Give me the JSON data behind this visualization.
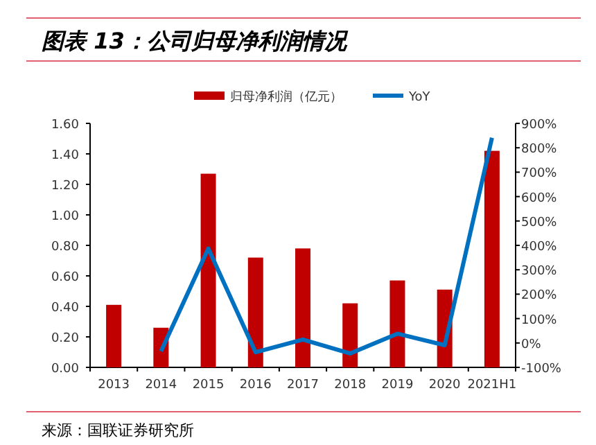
{
  "chart_data": {
    "type": "bar",
    "title": "图表 13：公司归母净利润情况",
    "categories": [
      "2013",
      "2014",
      "2015",
      "2016",
      "2017",
      "2018",
      "2019",
      "2020",
      "2021H1"
    ],
    "series": [
      {
        "name": "归母净利润（亿元）",
        "color": "#c00000",
        "values": [
          0.41,
          0.26,
          1.27,
          0.72,
          0.78,
          0.42,
          0.57,
          0.51,
          1.42
        ]
      },
      {
        "name": "YoY",
        "type": "line",
        "axis": "y2",
        "color": "#0070c0",
        "values": [
          null,
          -34,
          387,
          -38,
          14,
          -43,
          38,
          -9,
          841
        ]
      }
    ],
    "ylim": [
      0,
      1.6
    ],
    "yticks": [
      {
        "value": 0,
        "label": "0.00"
      },
      {
        "value": 0.2,
        "label": "0.20"
      },
      {
        "value": 0.4,
        "label": "0.40"
      },
      {
        "value": 0.6,
        "label": "0.60"
      },
      {
        "value": 0.8,
        "label": "0.80"
      },
      {
        "value": 1,
        "label": "1.00"
      },
      {
        "value": 1.2,
        "label": "1.20"
      },
      {
        "value": 1.4,
        "label": "1.40"
      },
      {
        "value": 1.6,
        "label": "1.60"
      }
    ],
    "y2lim": [
      -100,
      900
    ],
    "y2ticks": [
      {
        "value": -100,
        "label": "-100%"
      },
      {
        "value": 0,
        "label": "0%"
      },
      {
        "value": 100,
        "label": "100%"
      },
      {
        "value": 200,
        "label": "200%"
      },
      {
        "value": 300,
        "label": "300%"
      },
      {
        "value": 400,
        "label": "400%"
      },
      {
        "value": 500,
        "label": "500%"
      },
      {
        "value": 600,
        "label": "600%"
      },
      {
        "value": 700,
        "label": "700%"
      },
      {
        "value": 800,
        "label": "800%"
      },
      {
        "value": 900,
        "label": "900%"
      }
    ],
    "legend": "top",
    "grid": false,
    "annotations": [
      "来源：国联证券研究所"
    ]
  }
}
